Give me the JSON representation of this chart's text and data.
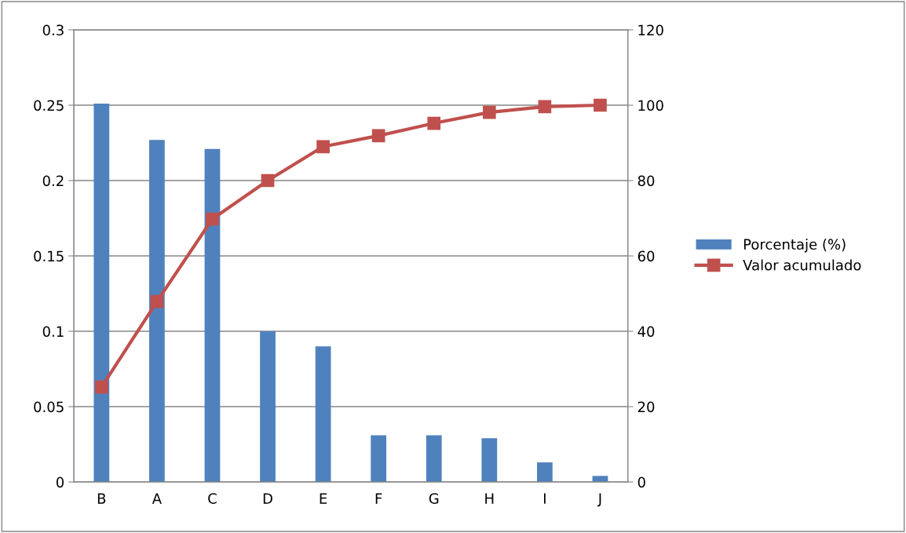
{
  "chart_data": {
    "type": "bar",
    "categories": [
      "B",
      "A",
      "C",
      "D",
      "E",
      "F",
      "G",
      "H",
      "I",
      "J"
    ],
    "series": [
      {
        "name": "Porcentaje (%)",
        "color": "#4f81bd",
        "values": [
          0.251,
          0.227,
          0.221,
          0.1,
          0.09,
          0.031,
          0.031,
          0.029,
          0.013,
          0.004
        ]
      },
      {
        "name": "Valor acumulado",
        "type": "line",
        "axis": "y2",
        "color": "#c0504d",
        "marker": "square",
        "values": [
          25.2,
          47.9,
          69.8,
          80,
          89,
          91.9,
          95.2,
          98.1,
          99.6,
          100
        ]
      }
    ],
    "ylim": [
      0,
      0.3
    ],
    "yticks": [
      0,
      0.05,
      0.1,
      0.15,
      0.2,
      0.25,
      0.3
    ],
    "y2lim": [
      0,
      120
    ],
    "y2ticks": [
      0,
      20,
      40,
      60,
      80,
      100,
      120
    ],
    "grid": "y",
    "legend": "right"
  }
}
